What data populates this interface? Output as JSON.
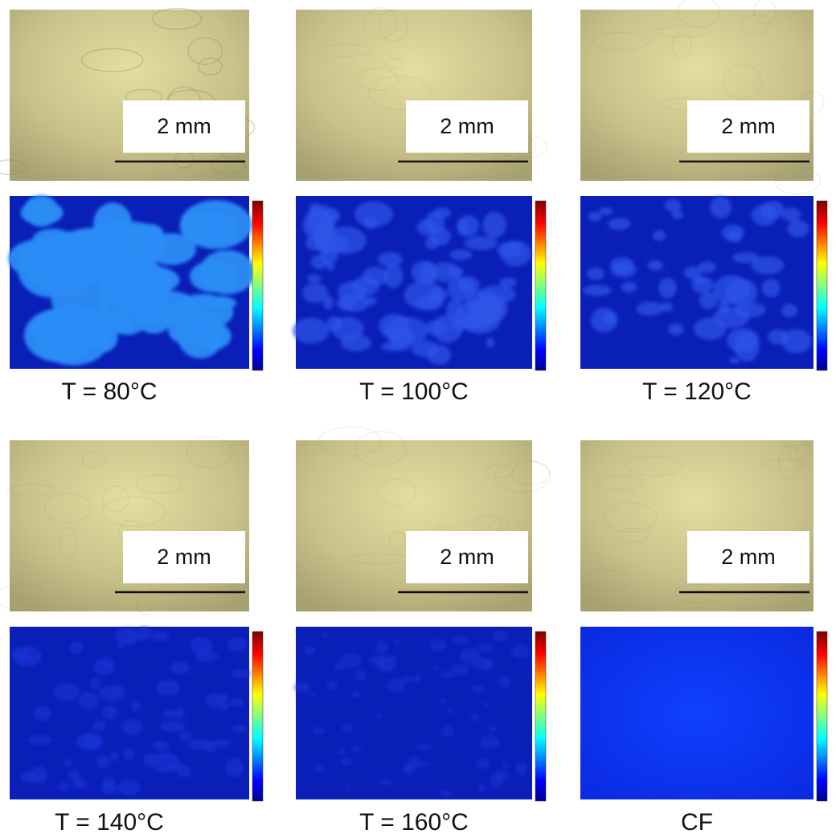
{
  "panels": [
    {
      "scale_label": "2 mm",
      "caption": "T = 80°C"
    },
    {
      "scale_label": "2 mm",
      "caption": "T = 100°C"
    },
    {
      "scale_label": "2 mm",
      "caption": "T = 120°C"
    },
    {
      "scale_label": "2 mm",
      "caption": "T = 140°C"
    },
    {
      "scale_label": "2 mm",
      "caption": "T = 160°C"
    },
    {
      "scale_label": "2 mm",
      "caption": "CF"
    }
  ]
}
